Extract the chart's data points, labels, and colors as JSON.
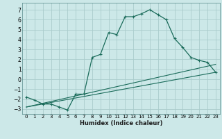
{
  "xlabel": "Humidex (Indice chaleur)",
  "bg_color": "#cce8e8",
  "grid_color": "#aacccc",
  "line_color": "#1a6b5a",
  "xlim": [
    -0.5,
    23.5
  ],
  "ylim": [
    -3.5,
    7.7
  ],
  "xticks": [
    0,
    1,
    2,
    3,
    4,
    5,
    6,
    7,
    8,
    9,
    10,
    11,
    12,
    13,
    14,
    15,
    16,
    17,
    18,
    19,
    20,
    21,
    22,
    23
  ],
  "yticks": [
    -3,
    -2,
    -1,
    0,
    1,
    2,
    3,
    4,
    5,
    6,
    7
  ],
  "line1_x": [
    0,
    1,
    2,
    3,
    4,
    5,
    6,
    7,
    8,
    9,
    10,
    11,
    12,
    13,
    14,
    15,
    16,
    17,
    18,
    19,
    20,
    21,
    22,
    23
  ],
  "line1_y": [
    -1.8,
    -2.1,
    -2.5,
    -2.5,
    -2.8,
    -3.1,
    -1.5,
    -1.5,
    2.2,
    2.5,
    4.7,
    4.5,
    6.3,
    6.3,
    6.6,
    7.0,
    6.5,
    6.0,
    4.1,
    3.2,
    2.2,
    1.9,
    1.7,
    0.7
  ],
  "line2_x": [
    0,
    23
  ],
  "line2_y": [
    -2.8,
    0.7
  ],
  "line3_x": [
    0,
    23
  ],
  "line3_y": [
    -2.8,
    1.5
  ]
}
